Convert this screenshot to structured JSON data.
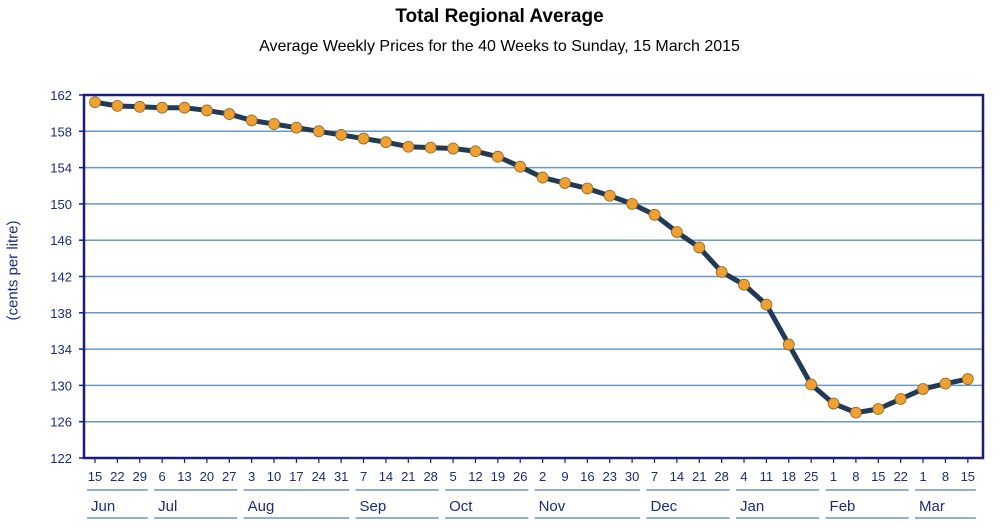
{
  "chart_data": {
    "type": "line",
    "title": "Total Regional Average",
    "subtitle": "Average Weekly Prices for the 40 Weeks to Sunday, 15 March 2015",
    "ylabel": "(cents per litre)",
    "xlabel": "",
    "ylim": [
      122,
      162
    ],
    "yticks": [
      122,
      126,
      130,
      134,
      138,
      142,
      146,
      150,
      154,
      158,
      162
    ],
    "grid": "horizontal",
    "x_day_labels": [
      "15",
      "22",
      "29",
      "6",
      "13",
      "20",
      "27",
      "3",
      "10",
      "17",
      "24",
      "31",
      "7",
      "14",
      "21",
      "28",
      "5",
      "12",
      "19",
      "26",
      "2",
      "9",
      "16",
      "23",
      "30",
      "7",
      "14",
      "21",
      "28",
      "4",
      "11",
      "18",
      "25",
      "1",
      "8",
      "15",
      "22",
      "1",
      "8",
      "15"
    ],
    "months": [
      {
        "label": "Jun",
        "start": 0,
        "end": 2
      },
      {
        "label": "Jul",
        "start": 3,
        "end": 6
      },
      {
        "label": "Aug",
        "start": 7,
        "end": 11
      },
      {
        "label": "Sep",
        "start": 12,
        "end": 15
      },
      {
        "label": "Oct",
        "start": 16,
        "end": 19
      },
      {
        "label": "Nov",
        "start": 20,
        "end": 24
      },
      {
        "label": "Dec",
        "start": 25,
        "end": 28
      },
      {
        "label": "Jan",
        "start": 29,
        "end": 32
      },
      {
        "label": "Feb",
        "start": 33,
        "end": 36
      },
      {
        "label": "Mar",
        "start": 37,
        "end": 39
      }
    ],
    "series": [
      {
        "values": [
          161.2,
          160.8,
          160.7,
          160.6,
          160.6,
          160.3,
          159.9,
          159.2,
          158.8,
          158.4,
          158.0,
          157.6,
          157.2,
          156.8,
          156.3,
          156.2,
          156.1,
          155.8,
          155.2,
          154.1,
          152.9,
          152.3,
          151.7,
          150.9,
          150.0,
          148.8,
          146.9,
          145.2,
          142.5,
          141.1,
          138.9,
          134.5,
          130.1,
          128.0,
          127.0,
          127.4,
          128.5,
          129.6,
          130.2,
          130.7
        ],
        "line_color": "#213a56",
        "marker_color": "#f0a030"
      }
    ],
    "colors": {
      "frame": "#1c1c7a",
      "grid": "#6a98c6",
      "text": "#1c2a7a"
    }
  }
}
